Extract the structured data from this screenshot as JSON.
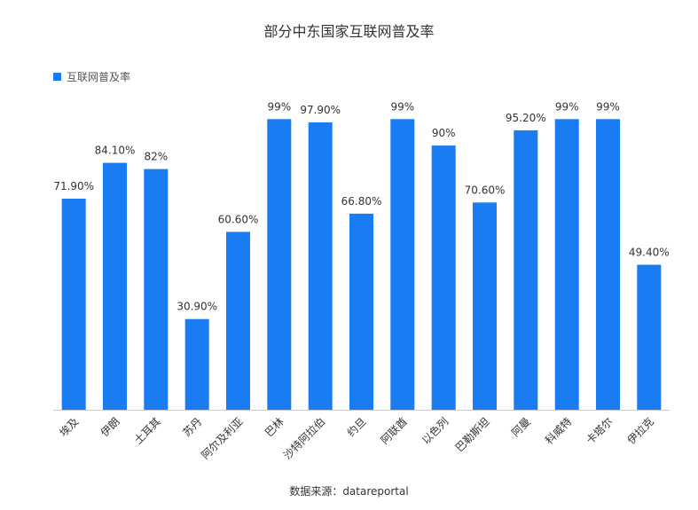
{
  "title": "部分中东国家互联网普及率",
  "source": "数据来源：datareportal",
  "colors": {
    "bar": "#1a7cf2",
    "axis": "#cccccc"
  },
  "chart_data": {
    "type": "bar",
    "title": "部分中东国家互联网普及率",
    "legend": {
      "position": "top-left",
      "entries": [
        "互联网普及率"
      ]
    },
    "categories": [
      "埃及",
      "伊朗",
      "土耳其",
      "苏丹",
      "阿尔及利亚",
      "巴林",
      "沙特阿拉伯",
      "约旦",
      "阿联酋",
      "以色列",
      "巴勒斯坦",
      "阿曼",
      "科威特",
      "卡塔尔",
      "伊拉克"
    ],
    "series": [
      {
        "name": "互联网普及率",
        "values": [
          71.9,
          84.1,
          82,
          30.9,
          60.6,
          99,
          97.9,
          66.8,
          99,
          90,
          70.6,
          95.2,
          99,
          99,
          49.4
        ],
        "labels": [
          "71.90%",
          "84.10%",
          "82%",
          "30.90%",
          "60.60%",
          "99%",
          "97.90%",
          "66.80%",
          "99%",
          "90%",
          "70.60%",
          "95.20%",
          "99%",
          "99%",
          "49.40%"
        ]
      }
    ],
    "ylim": [
      0,
      100
    ],
    "grid": false,
    "xlabel": "",
    "ylabel": ""
  }
}
